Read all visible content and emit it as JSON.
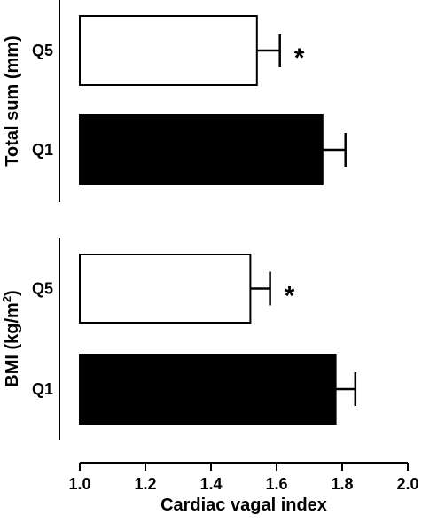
{
  "chart_data": {
    "type": "bar",
    "orientation": "horizontal",
    "xlabel": "Cardiac vagal index",
    "xlim": [
      1.0,
      2.0
    ],
    "xticks": [
      "1.0",
      "1.2",
      "1.4",
      "1.6",
      "1.8",
      "2.0"
    ],
    "panels": [
      {
        "ylabel": "Total sum (mm)",
        "ylabel_sup": "",
        "ylabel_tail": "",
        "bars": [
          {
            "category": "Q5",
            "value": 1.54,
            "error": 0.07,
            "fill": "#ffffff",
            "annotation": "*"
          },
          {
            "category": "Q1",
            "value": 1.74,
            "error": 0.07,
            "fill": "#000000",
            "annotation": ""
          }
        ]
      },
      {
        "ylabel": "BMI (kg/m",
        "ylabel_sup": "2",
        "ylabel_tail": ")",
        "bars": [
          {
            "category": "Q5",
            "value": 1.52,
            "error": 0.06,
            "fill": "#ffffff",
            "annotation": "*"
          },
          {
            "category": "Q1",
            "value": 1.78,
            "error": 0.06,
            "fill": "#000000",
            "annotation": ""
          }
        ]
      }
    ]
  }
}
